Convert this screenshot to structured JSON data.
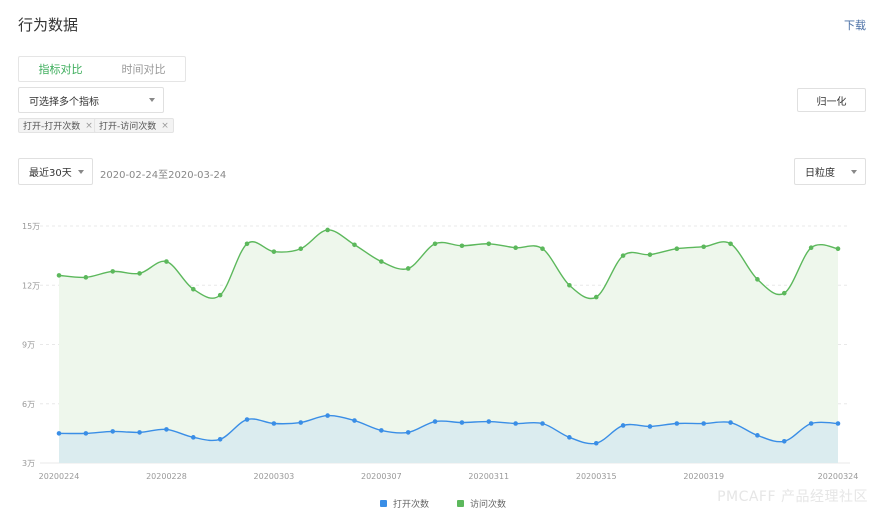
{
  "header": {
    "title": "行为数据",
    "download_label": "下载"
  },
  "compare_tabs": [
    {
      "label": "指标对比",
      "active": true
    },
    {
      "label": "时间对比",
      "active": false
    }
  ],
  "metric_select": {
    "value": "可选择多个指标"
  },
  "selected_tags": [
    {
      "label": "打开-打开次数"
    },
    {
      "label": "打开-访问次数"
    }
  ],
  "normalize_label": "归一化",
  "period_select": {
    "value": "最近30天"
  },
  "date_range": "2020-02-24至2020-03-24",
  "granularity_select": {
    "value": "日粒度"
  },
  "watermark": "PMCAFF 产品经理社区",
  "colors": {
    "accent": "#3cad5b",
    "blue": "#3a8ee6",
    "green": "#5cb85c",
    "green_fill": "#eef7ec",
    "blue_fill": "#dbecef"
  },
  "chart_data": {
    "type": "area",
    "y_ticks": [
      "15万",
      "12万",
      "9万",
      "6万",
      "3万"
    ],
    "y_tick_values": [
      150000,
      120000,
      90000,
      60000,
      30000
    ],
    "ylim": [
      30000,
      150000
    ],
    "x_tick_labels": [
      "20200224",
      "20200228",
      "20200303",
      "20200307",
      "20200311",
      "20200315",
      "20200319",
      "20200324"
    ],
    "x_tick_index": [
      0,
      4,
      8,
      12,
      16,
      20,
      24,
      29
    ],
    "categories": [
      "20200224",
      "20200225",
      "20200226",
      "20200227",
      "20200228",
      "20200229",
      "20200301",
      "20200302",
      "20200303",
      "20200304",
      "20200305",
      "20200306",
      "20200307",
      "20200308",
      "20200309",
      "20200310",
      "20200311",
      "20200312",
      "20200313",
      "20200314",
      "20200315",
      "20200316",
      "20200317",
      "20200318",
      "20200319",
      "20200320",
      "20200321",
      "20200322",
      "20200323",
      "20200324"
    ],
    "series": [
      {
        "name": "打开次数",
        "color": "#3a8ee6",
        "values": [
          45000,
          45000,
          46000,
          45500,
          47000,
          43000,
          42000,
          52000,
          50000,
          50500,
          54000,
          51500,
          46500,
          45500,
          51000,
          50500,
          51000,
          50000,
          50000,
          43000,
          40000,
          49000,
          48500,
          50000,
          50000,
          50500,
          44000,
          41000,
          50000,
          50000
        ]
      },
      {
        "name": "访问次数",
        "color": "#5cb85c",
        "values": [
          125000,
          124000,
          127000,
          126000,
          132000,
          118000,
          115000,
          141000,
          137000,
          138500,
          148000,
          140500,
          132000,
          128500,
          141000,
          140000,
          141000,
          139000,
          138500,
          120000,
          114000,
          135000,
          135500,
          138500,
          139500,
          141000,
          123000,
          116000,
          139000,
          138500
        ]
      }
    ],
    "grid": true,
    "legend": "bottom-center"
  }
}
